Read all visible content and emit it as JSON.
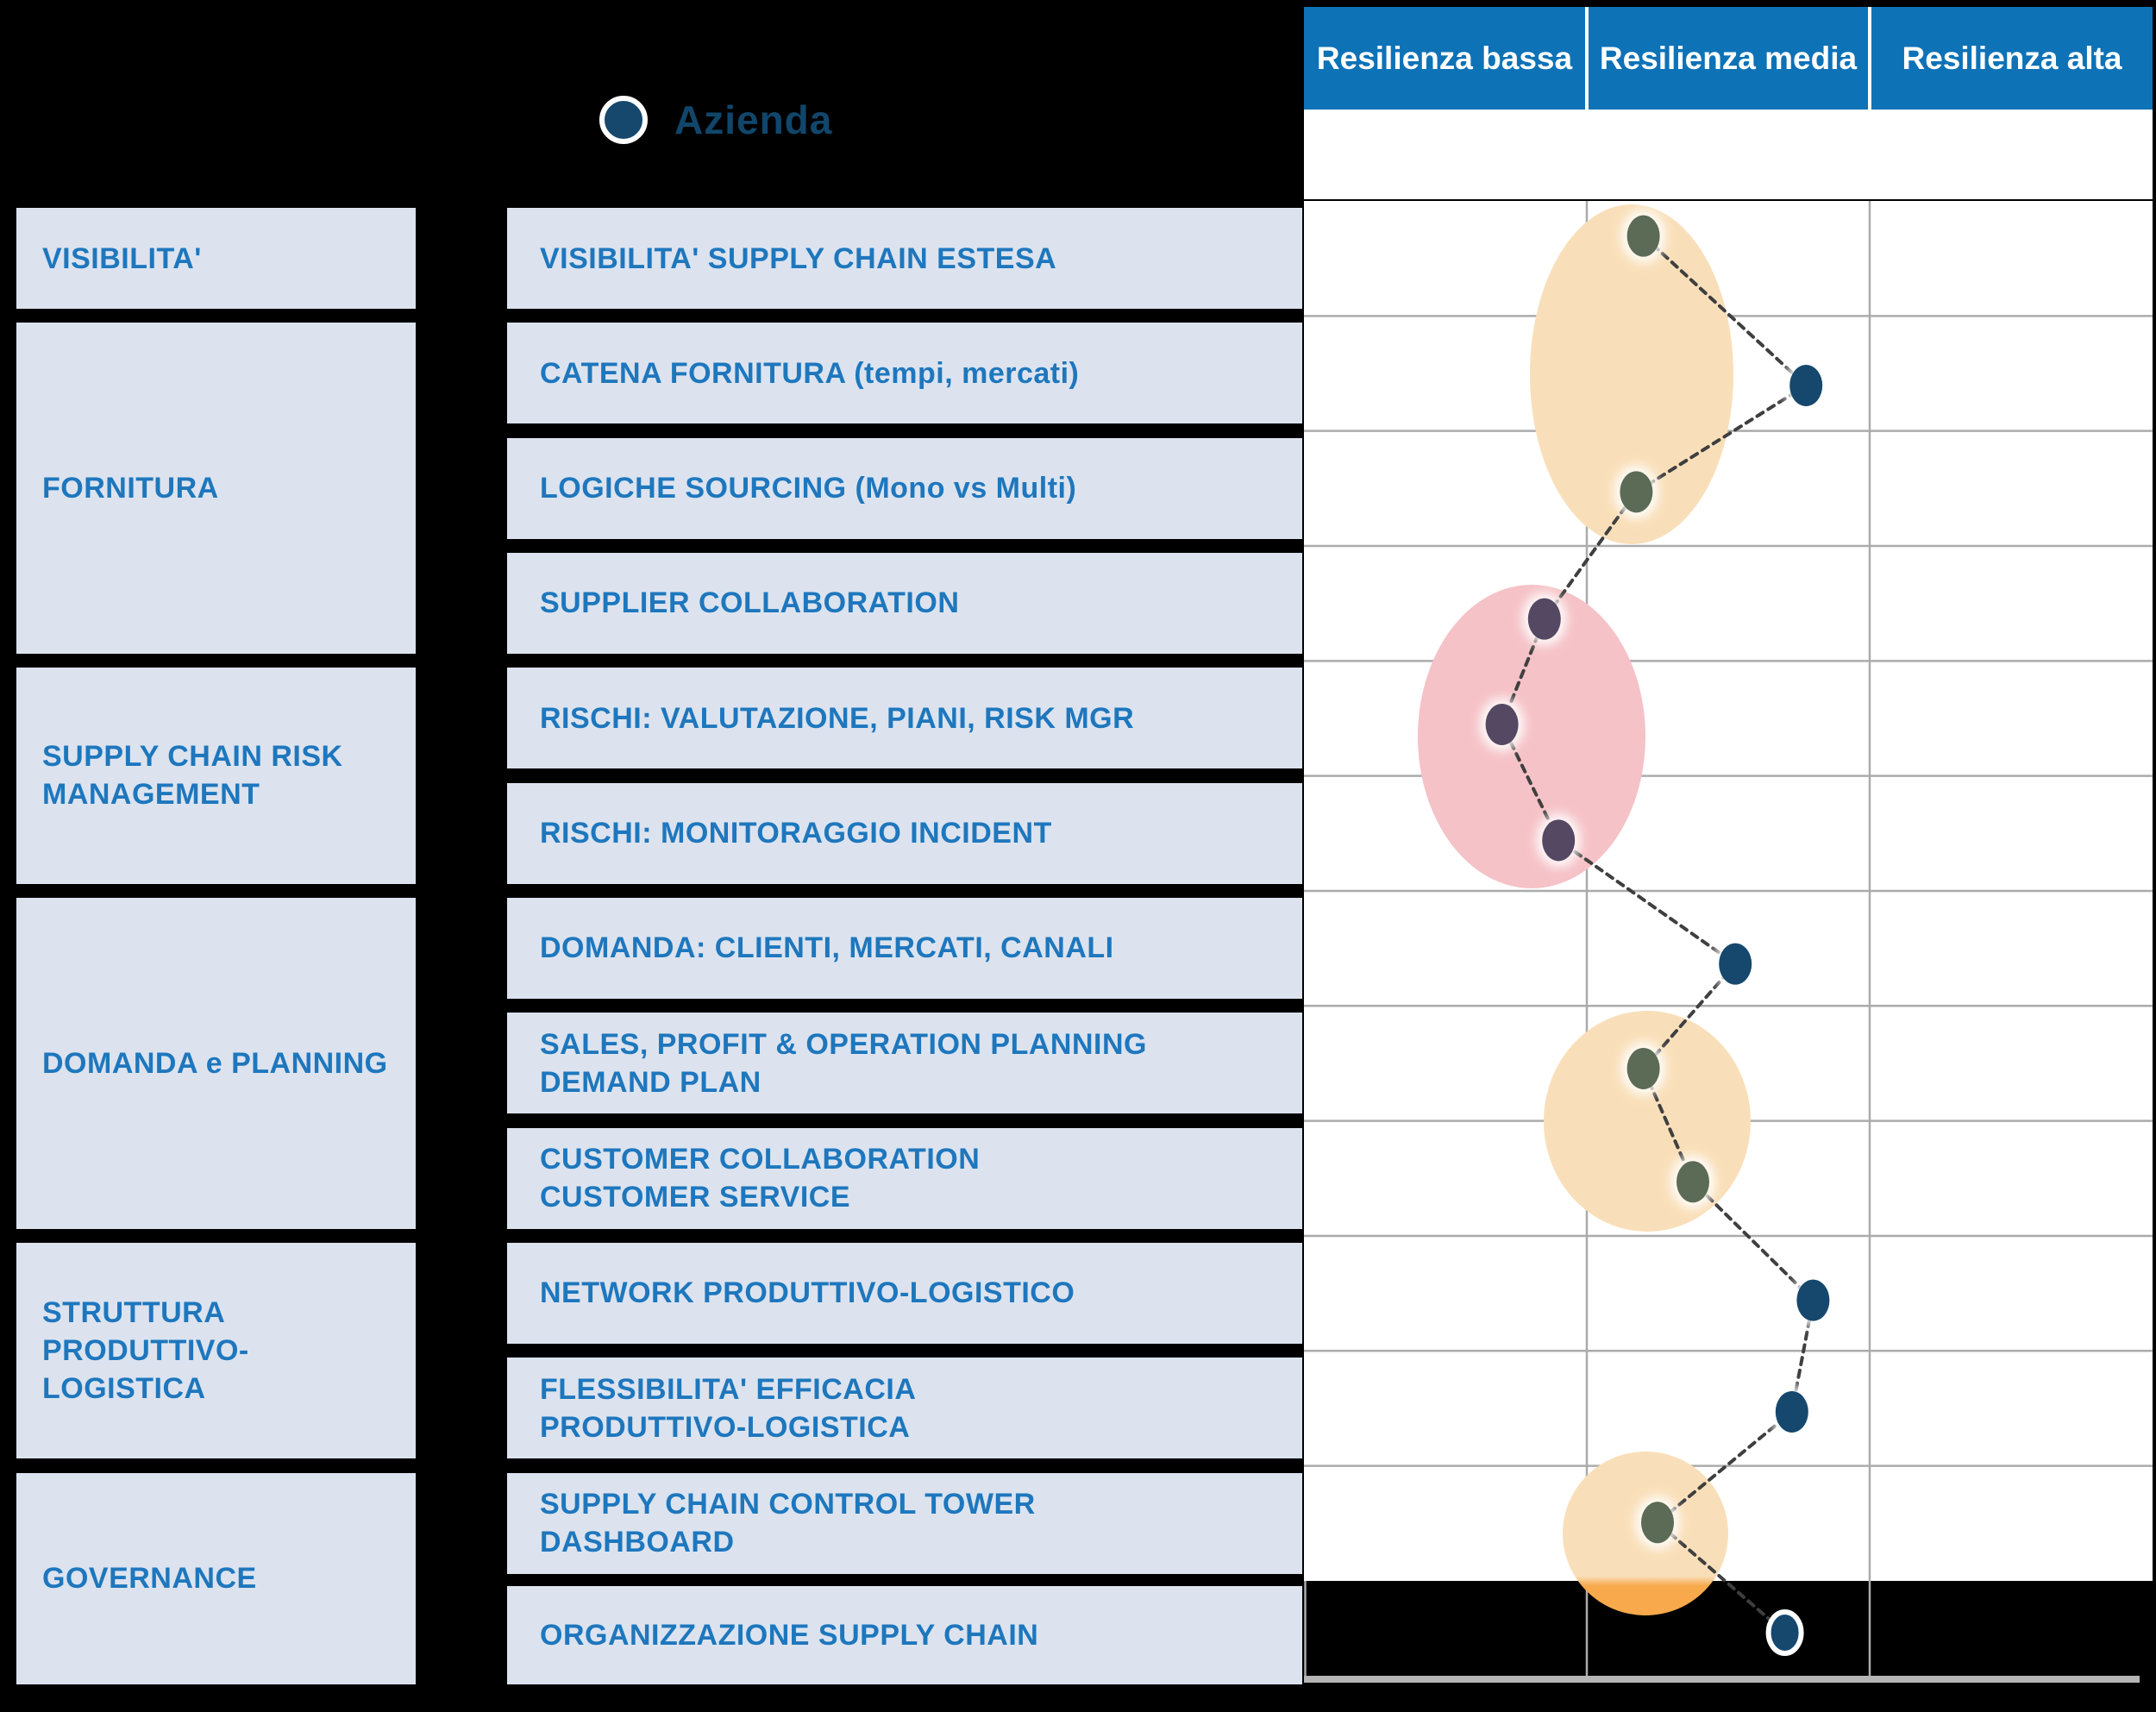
{
  "legend": {
    "label": "Azienda",
    "marker_fill": "#16486e",
    "marker_ring": "#ffffff",
    "label_color": "#11466b"
  },
  "resilience_header": {
    "bg": "#0e72b7",
    "text_color": "#ffffff",
    "groups": [
      {
        "label": "Resilienza bassa"
      },
      {
        "label": "Resilienza media"
      },
      {
        "label": "Resilienza alta"
      }
    ]
  },
  "scale": {
    "number_color": "#1c1c1c",
    "levels": [
      {
        "value": "1",
        "color": "#ed6a66"
      },
      {
        "value": "2",
        "color": "#f0926c"
      },
      {
        "value": "3",
        "color": "#f8c875"
      },
      {
        "value": "4",
        "color": "#dde385"
      },
      {
        "value": "5",
        "color": "#9cc873"
      },
      {
        "value": "6",
        "color": "#68b37b"
      }
    ]
  },
  "categories": [
    {
      "lines": [
        "VISIBILITA'"
      ],
      "row_start": 1,
      "row_end": 1
    },
    {
      "lines": [
        "FORNITURA"
      ],
      "row_start": 2,
      "row_end": 4
    },
    {
      "lines": [
        "SUPPLY CHAIN RISK",
        "MANAGEMENT"
      ],
      "row_start": 5,
      "row_end": 6
    },
    {
      "lines": [
        "DOMANDA e PLANNING"
      ],
      "row_start": 7,
      "row_end": 9
    },
    {
      "lines": [
        "STRUTTURA PRODUTTIVO-",
        "LOGISTICA"
      ],
      "row_start": 10,
      "row_end": 11
    },
    {
      "lines": [
        "GOVERNANCE"
      ],
      "row_start": 12,
      "row_end": 13
    }
  ],
  "rows": [
    {
      "lines": [
        "VISIBILITA' SUPPLY CHAIN ESTESA"
      ]
    },
    {
      "lines": [
        "CATENA FORNITURA (tempi, mercati)"
      ]
    },
    {
      "lines": [
        "LOGICHE SOURCING (Mono vs Multi)"
      ]
    },
    {
      "lines": [
        "SUPPLIER COLLABORATION"
      ]
    },
    {
      "lines": [
        "RISCHI: VALUTAZIONE, PIANI, RISK MGR"
      ]
    },
    {
      "lines": [
        "RISCHI: MONITORAGGIO INCIDENT"
      ]
    },
    {
      "lines": [
        "DOMANDA: CLIENTI, MERCATI, CANALI"
      ]
    },
    {
      "lines": [
        "SALES, PROFIT & OPERATION PLANNING",
        "DEMAND PLAN"
      ]
    },
    {
      "lines": [
        "CUSTOMER COLLABORATION",
        "CUSTOMER SERVICE"
      ]
    },
    {
      "lines": [
        "NETWORK PRODUTTIVO-LOGISTICO"
      ]
    },
    {
      "lines": [
        "FLESSIBILITA' EFFICACIA",
        "PRODUTTIVO-LOGISTICA"
      ]
    },
    {
      "lines": [
        "SUPPLY CHAIN CONTROL TOWER",
        "DASHBOARD"
      ]
    },
    {
      "lines": [
        "ORGANIZZAZIONE SUPPLY CHAIN"
      ]
    }
  ],
  "chart": {
    "grid_line_color": "#ababab",
    "bottom_line_color": "#b5b5b5",
    "line_color": "#3f3f3f",
    "point_color_default": "#16486e",
    "point_color_in_orange": "#5c6b55",
    "point_color_in_pink": "#544862",
    "ellipse_orange_color": "#f9dfb9",
    "ellipse_orange_solid_color": "#f7a94b",
    "ellipse_pink_color": "#f5c2c7"
  },
  "chart_data": {
    "type": "line",
    "title": "",
    "orientation": "horizontal-values-vertical-categories",
    "legend": [
      "Azienda"
    ],
    "legend_position": "top-left",
    "grid": true,
    "value_axis": {
      "min": 1,
      "max": 6,
      "ticks": [
        "1",
        "2",
        "3",
        "4",
        "5",
        "6"
      ],
      "groups": [
        {
          "label": "Resilienza bassa",
          "range": [
            1,
            2
          ]
        },
        {
          "label": "Resilienza media",
          "range": [
            3,
            4
          ]
        },
        {
          "label": "Resilienza alta",
          "range": [
            5,
            6
          ]
        }
      ]
    },
    "categories": [
      "VISIBILITA' SUPPLY CHAIN ESTESA",
      "CATENA FORNITURA (tempi, mercati)",
      "LOGICHE SOURCING (Mono vs Multi)",
      "SUPPLIER COLLABORATION",
      "RISCHI: VALUTAZIONE, PIANI, RISK MGR",
      "RISCHI: MONITORAGGIO INCIDENT",
      "DOMANDA: CLIENTI, MERCATI, CANALI",
      "SALES, PROFIT & OPERATION PLANNING DEMAND PLAN",
      "CUSTOMER COLLABORATION CUSTOMER SERVICE",
      "NETWORK PRODUTTIVO-LOGISTICO",
      "FLESSIBILITA' EFFICACIA PRODUTTIVO-LOGISTICA",
      "SUPPLY CHAIN CONTROL TOWER DASHBOARD",
      "ORGANIZZAZIONE SUPPLY CHAIN"
    ],
    "series": [
      {
        "name": "Azienda",
        "values": [
          2.9,
          4.05,
          2.85,
          2.2,
          1.9,
          2.3,
          3.55,
          2.9,
          3.25,
          4.1,
          3.95,
          3.0,
          3.9
        ]
      }
    ],
    "highlight_zones": [
      {
        "shape": "ellipse",
        "color": "orange",
        "rows": [
          1,
          3
        ]
      },
      {
        "shape": "ellipse",
        "color": "pink",
        "rows": [
          4,
          6
        ]
      },
      {
        "shape": "ellipse",
        "color": "orange",
        "rows": [
          8,
          9
        ]
      },
      {
        "shape": "ellipse",
        "color": "orange",
        "rows": [
          12,
          12
        ]
      }
    ]
  }
}
